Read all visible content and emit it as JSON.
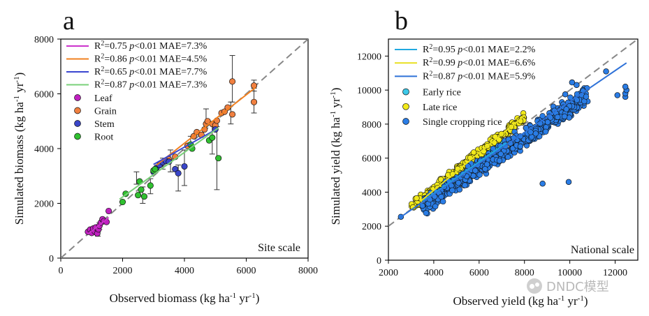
{
  "panels": [
    {
      "panel_label": "a",
      "corner_label": "Site scale",
      "chart_data": {
        "type": "scatter",
        "xlabel": "Observed biomass (kg ha-1 yr-1)",
        "ylabel": "Simulated biomass (kg ha-1 yr-1)",
        "xlim": [
          0,
          8000
        ],
        "ylim": [
          0,
          8000
        ],
        "xticks": [
          0,
          2000,
          4000,
          6000,
          8000
        ],
        "yticks": [
          0,
          2000,
          4000,
          6000,
          8000
        ],
        "one_to_one_line": true,
        "fit_lines": [
          {
            "label": "R2=0.75 p<0.01 MAE=7.3%",
            "color": "#cc33cc",
            "x": [
              880,
              1550
            ],
            "y": [
              880,
              1480
            ]
          },
          {
            "label": "R2=0.86 p<0.01 MAE=4.5%",
            "color": "#f08020",
            "x": [
              3100,
              6300
            ],
            "y": [
              3400,
              6230
            ]
          },
          {
            "label": "R2=0.65 p<0.01 MAE=7.7%",
            "color": "#3a46d0",
            "x": [
              3000,
              5100
            ],
            "y": [
              3420,
              4750
            ]
          },
          {
            "label": "R2=0.87 p<0.01 MAE=7.3%",
            "color": "#7ad07a",
            "x": [
              1900,
              5100
            ],
            "y": [
              2150,
              4760
            ]
          }
        ],
        "series": [
          {
            "name": "Leaf",
            "color": "#c020c0",
            "points": [
              [
                880,
                960
              ],
              [
                950,
                1040
              ],
              [
                1000,
                920
              ],
              [
                1050,
                1080
              ],
              [
                1100,
                980
              ],
              [
                1130,
                1120
              ],
              [
                1180,
                900
              ],
              [
                1220,
                1050
              ],
              [
                1250,
                1180
              ],
              [
                1300,
                1300
              ],
              [
                1350,
                1420
              ],
              [
                1400,
                1350
              ],
              [
                1480,
                1320
              ],
              [
                1550,
                1720
              ]
            ]
          },
          {
            "name": "Grain",
            "color": "#f08040",
            "points": [
              [
                3250,
                3450
              ],
              [
                3500,
                3600
              ],
              [
                3700,
                3700
              ],
              [
                4100,
                4100
              ],
              [
                4300,
                4450
              ],
              [
                4400,
                4600
              ],
              [
                4550,
                4500
              ],
              [
                4650,
                4700
              ],
              [
                4700,
                4900
              ],
              [
                4750,
                5000
              ],
              [
                4900,
                4900
              ],
              [
                5000,
                4850
              ],
              [
                5050,
                5020
              ],
              [
                5200,
                5300
              ],
              [
                5300,
                5350
              ],
              [
                5400,
                5500
              ],
              [
                5550,
                6450
              ],
              [
                5550,
                5250
              ],
              [
                6250,
                6300
              ],
              [
                6250,
                5700
              ]
            ]
          },
          {
            "name": "Stem",
            "color": "#3a46c8",
            "points": [
              [
                3000,
                3150
              ],
              [
                3100,
                3300
              ],
              [
                3200,
                3400
              ],
              [
                3300,
                3500
              ],
              [
                3400,
                3550
              ],
              [
                3500,
                3520
              ],
              [
                3700,
                3250
              ],
              [
                3800,
                3100
              ],
              [
                4000,
                3350
              ],
              [
                5000,
                4700
              ]
            ]
          },
          {
            "name": "Root",
            "color": "#30c030",
            "points": [
              [
                2000,
                2050
              ],
              [
                2100,
                2350
              ],
              [
                2500,
                2300
              ],
              [
                2550,
                2800
              ],
              [
                2600,
                2500
              ],
              [
                2700,
                2250
              ],
              [
                2900,
                2650
              ],
              [
                3000,
                3200
              ],
              [
                3050,
                3250
              ],
              [
                4200,
                4150
              ],
              [
                4250,
                4000
              ],
              [
                4800,
                4300
              ],
              [
                4900,
                4400
              ],
              [
                5100,
                3650
              ]
            ]
          }
        ],
        "error_bars": [
          [
            1200,
            800,
            950
          ],
          [
            1250,
            1050,
            1300
          ],
          [
            2450,
            2700,
            3150
          ],
          [
            2650,
            2000,
            2600
          ],
          [
            2900,
            2350,
            2900
          ],
          [
            3300,
            3250,
            3650
          ],
          [
            3550,
            3150,
            3950
          ],
          [
            3800,
            2450,
            3400
          ],
          [
            4000,
            2650,
            3950
          ],
          [
            4200,
            4000,
            4450
          ],
          [
            4700,
            4850,
            5450
          ],
          [
            4900,
            3800,
            4950
          ],
          [
            5050,
            2500,
            4800
          ],
          [
            5500,
            4900,
            5700
          ],
          [
            5550,
            5700,
            7400
          ],
          [
            6250,
            5300,
            6200
          ],
          [
            6250,
            6100,
            6500
          ]
        ]
      }
    },
    {
      "panel_label": "b",
      "corner_label": "National scale",
      "chart_data": {
        "type": "scatter",
        "xlabel": "Observed yield (kg ha-1 yr-1)",
        "ylabel": "Simulated yield (kg ha-1 yr-1)",
        "xlim": [
          2000,
          13000
        ],
        "ylim": [
          0,
          13000
        ],
        "xticks": [
          2000,
          4000,
          6000,
          8000,
          10000,
          12000
        ],
        "yticks": [
          0,
          2000,
          4000,
          6000,
          8000,
          10000,
          12000
        ],
        "one_to_one_line": true,
        "fit_lines": [
          {
            "label": "R2=0.95 p<0.01 MAE=2.2%",
            "color": "#20a8e0",
            "x": [
              3500,
              7200
            ],
            "y": [
              3450,
              6900
            ]
          },
          {
            "label": "R2=0.99 p<0.01 MAE=6.6%",
            "color": "#e8e020",
            "x": [
              3400,
              8000
            ],
            "y": [
              3450,
              8500
            ]
          },
          {
            "label": "R2=0.87 p<0.01 MAE=5.9%",
            "color": "#2f72d8",
            "x": [
              2500,
              12500
            ],
            "y": [
              2500,
              11600
            ]
          }
        ],
        "series": [
          {
            "name": "Early rice",
            "color": "#3cc8e8",
            "cloud": {
              "x": [
                4200,
                7000
              ],
              "slope": 0.95,
              "spread": 450,
              "count": 260,
              "seed": 11
            }
          },
          {
            "name": "Late rice",
            "color": "#f2ea1a",
            "cloud": {
              "x": [
                3000,
                8000
              ],
              "slope": 1.05,
              "spread": 400,
              "count": 260,
              "seed": 23
            }
          },
          {
            "name": "Single cropping rice",
            "color": "#2a7de6",
            "cloud": {
              "x": [
                3500,
                10800
              ],
              "slope": 0.9,
              "spread": 800,
              "count": 560,
              "seed": 37
            },
            "points": [
              [
                2550,
                2550
              ],
              [
                3500,
                3200
              ],
              [
                8800,
                4500
              ],
              [
                9950,
                4600
              ],
              [
                11600,
                11100
              ],
              [
                12100,
                9700
              ],
              [
                12450,
                9600
              ],
              [
                12450,
                9800
              ],
              [
                12500,
                10000
              ],
              [
                12450,
                10200
              ],
              [
                10300,
                10300
              ],
              [
                10100,
                10450
              ],
              [
                9800,
                9750
              ]
            ]
          }
        ]
      }
    }
  ],
  "watermark": "DNDC模型"
}
